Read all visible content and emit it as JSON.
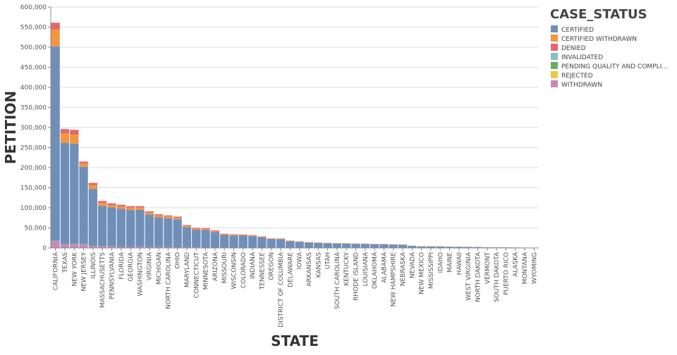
{
  "chart_data": {
    "type": "bar",
    "stacked": true,
    "xlabel": "STATE",
    "ylabel": "PETITION",
    "ylim": [
      0,
      600000
    ],
    "yticks": [
      0,
      50000,
      100000,
      150000,
      200000,
      250000,
      300000,
      350000,
      400000,
      450000,
      500000,
      550000,
      600000
    ],
    "ytick_labels": [
      "0",
      "50,000",
      "100,000",
      "150,000",
      "200,000",
      "250,000",
      "300,000",
      "350,000",
      "400,000",
      "450,000",
      "500,000",
      "550,000",
      "600,000"
    ],
    "grid": true,
    "legend": {
      "title": "CASE_STATUS",
      "position": "right",
      "labels": [
        "CERTIFIED",
        "CERTIFIED WITHDRAWN",
        "DENIED",
        "INVALIDATED",
        "PENDING QUALITY AND COMPLI...",
        "REJECTED",
        "WITHDRAWN"
      ]
    },
    "categories": [
      "CALIFORNIA",
      "TEXAS",
      "NEW YORK",
      "NEW JERSEY",
      "ILLINOIS",
      "MASSACHUSETTS",
      "PENNSYLVANIA",
      "FLORIDA",
      "GEORGIA",
      "WASHINGTON",
      "VIRGINIA",
      "MICHIGAN",
      "NORTH CAROLINA",
      "OHIO",
      "MARYLAND",
      "CONNECTICUT",
      "MINNESOTA",
      "ARIZONA",
      "MISSOURI",
      "WISCONSIN",
      "COLORADO",
      "INDIANA",
      "TENNESSEE",
      "OREGON",
      "DISTRICT OF COLUMBIA",
      "DELAWARE",
      "IOWA",
      "ARKANSAS",
      "KANSAS",
      "UTAH",
      "SOUTH CAROLINA",
      "KENTUCKY",
      "RHODE ISLAND",
      "LOUISIANA",
      "OKLAHOMA",
      "ALABAMA",
      "NEW HAMPSHIRE",
      "NEBRASKA",
      "NEVADA",
      "NEW MEXICO",
      "MISSISSIPPI",
      "IDAHO",
      "MAINE",
      "HAWAII",
      "WEST VIRGINIA",
      "NORTH DAKOTA",
      "VERMONT",
      "SOUTH DAKOTA",
      "PUERTO RICO",
      "ALASKA",
      "MONTANA",
      "WYOMING"
    ],
    "series": [
      {
        "name": "CERTIFIED",
        "color": "#6f8fb8",
        "values": [
          484000,
          253000,
          250000,
          192000,
          142000,
          101000,
          97000,
          95000,
          92000,
          92000,
          81000,
          74000,
          72000,
          70000,
          50000,
          44000,
          44000,
          39000,
          31500,
          30500,
          30000,
          29000,
          26000,
          21500,
          21200,
          16300,
          14800,
          13000,
          12000,
          11200,
          10800,
          10600,
          10000,
          9800,
          9100,
          8900,
          8300,
          7800,
          5100,
          3800,
          3700,
          3600,
          3000,
          2800,
          2500,
          2300,
          1600,
          1500,
          1400,
          1100,
          900,
          800
        ]
      },
      {
        "name": "CERTIFIED WITHDRAWN",
        "color": "#f2963f",
        "values": [
          42000,
          24000,
          22000,
          8000,
          10000,
          8000,
          6000,
          6000,
          6000,
          5500,
          5000,
          5000,
          4500,
          4000,
          3500,
          3000,
          2800,
          2500,
          2000,
          2000,
          1900,
          1700,
          1600,
          1300,
          1300,
          1000,
          900,
          800,
          700,
          700,
          700,
          600,
          600,
          600,
          550,
          550,
          500,
          450,
          300,
          250,
          250,
          200,
          200,
          200,
          150,
          150,
          100,
          100,
          100,
          80,
          60,
          50
        ]
      },
      {
        "name": "DENIED",
        "color": "#e2666f",
        "values": [
          17000,
          10000,
          12000,
          5000,
          5000,
          4000,
          4000,
          4000,
          3500,
          3500,
          3000,
          2500,
          2500,
          2500,
          2000,
          1500,
          1500,
          1500,
          1000,
          1000,
          1000,
          900,
          800,
          700,
          700,
          500,
          400,
          400,
          400,
          400,
          350,
          350,
          300,
          300,
          300,
          300,
          250,
          250,
          150,
          120,
          120,
          100,
          100,
          100,
          80,
          80,
          60,
          60,
          60,
          40,
          30,
          30
        ]
      },
      {
        "name": "INVALIDATED",
        "color": "#85c1bf",
        "values": [
          100,
          60,
          60,
          40,
          30,
          20,
          20,
          20,
          20,
          20,
          20,
          20,
          20,
          20,
          10,
          10,
          10,
          10,
          10,
          10,
          10,
          10,
          5,
          5,
          5,
          5,
          5,
          5,
          5,
          5,
          5,
          5,
          5,
          5,
          5,
          5,
          5,
          5,
          5,
          5,
          5,
          5,
          5,
          5,
          5,
          5,
          5,
          5,
          5,
          5,
          5,
          5
        ]
      },
      {
        "name": "PENDING QUALITY AND COMPLI...",
        "color": "#6aad5d",
        "values": [
          5,
          3,
          3,
          2,
          2,
          1,
          1,
          1,
          1,
          1,
          1,
          1,
          1,
          1,
          1,
          1,
          1,
          1,
          0,
          0,
          0,
          0,
          0,
          0,
          0,
          0,
          0,
          0,
          0,
          0,
          0,
          0,
          0,
          0,
          0,
          0,
          0,
          0,
          0,
          0,
          0,
          0,
          0,
          0,
          0,
          0,
          0,
          0,
          0,
          0,
          0,
          0
        ]
      },
      {
        "name": "REJECTED",
        "color": "#ecc947",
        "values": [
          6,
          4,
          4,
          2,
          2,
          1,
          1,
          1,
          1,
          1,
          1,
          1,
          1,
          1,
          1,
          1,
          1,
          1,
          0,
          0,
          0,
          0,
          0,
          0,
          0,
          0,
          0,
          0,
          0,
          0,
          0,
          0,
          0,
          0,
          0,
          0,
          0,
          0,
          0,
          0,
          0,
          0,
          0,
          0,
          0,
          0,
          0,
          0,
          0,
          0,
          0,
          0
        ]
      },
      {
        "name": "WITHDRAWN",
        "color": "#c48db5",
        "values": [
          18000,
          9000,
          10000,
          10000,
          5000,
          4000,
          4000,
          2500,
          2500,
          3000,
          2000,
          2500,
          2000,
          1500,
          1500,
          1500,
          1000,
          1000,
          1000,
          700,
          700,
          600,
          600,
          500,
          500,
          400,
          300,
          300,
          300,
          300,
          250,
          250,
          200,
          200,
          200,
          200,
          150,
          150,
          100,
          100,
          80,
          80,
          70,
          70,
          60,
          50,
          40,
          40,
          40,
          30,
          20,
          20
        ]
      }
    ]
  }
}
